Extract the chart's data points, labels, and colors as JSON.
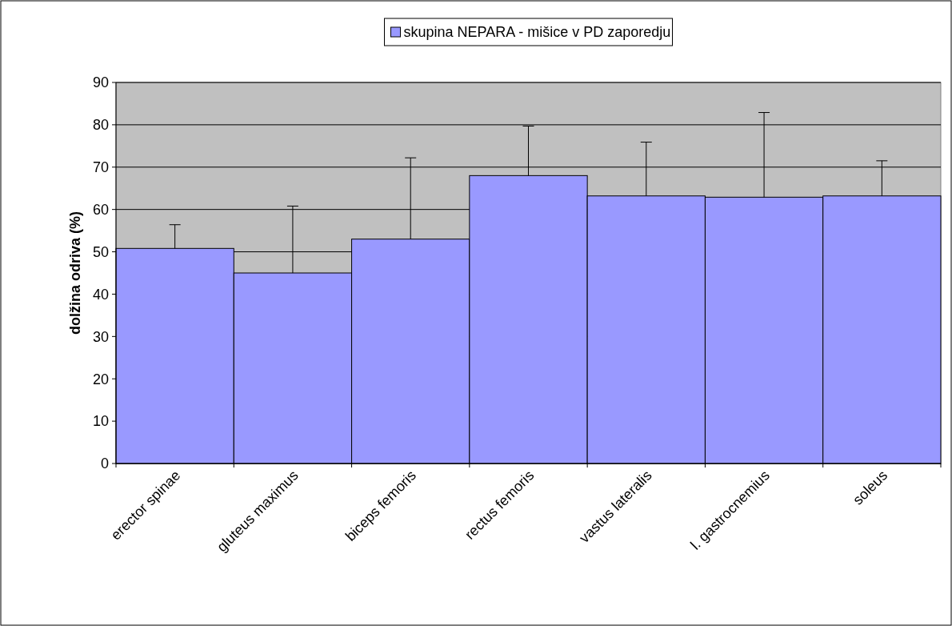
{
  "chart_data": {
    "type": "bar",
    "ylabel": "dolžina odriva (%)",
    "categories": [
      "erector spinae",
      "gluteus maximus",
      "biceps femoris",
      "rectus femoris",
      "vastus lateralis",
      "l. gastrocnemius",
      "soleus"
    ],
    "series": [
      {
        "name": "skupina NEPARA - mišice v PD zaporedju",
        "color": "#9999ff",
        "values": [
          50.8,
          45,
          53,
          68,
          63.2,
          62.9,
          63.2
        ],
        "errors": [
          [
            50.8,
            56.4
          ],
          [
            45,
            60.8
          ],
          [
            53,
            72.2
          ],
          [
            68,
            79.7
          ],
          [
            63.2,
            75.9
          ],
          [
            62.9,
            82.9
          ],
          [
            63.2,
            71.5
          ]
        ]
      }
    ],
    "ylim": [
      0,
      90
    ],
    "yticks": [
      0,
      10,
      20,
      30,
      40,
      50,
      60,
      70,
      80,
      90
    ],
    "grid": "y",
    "legend": "top"
  }
}
